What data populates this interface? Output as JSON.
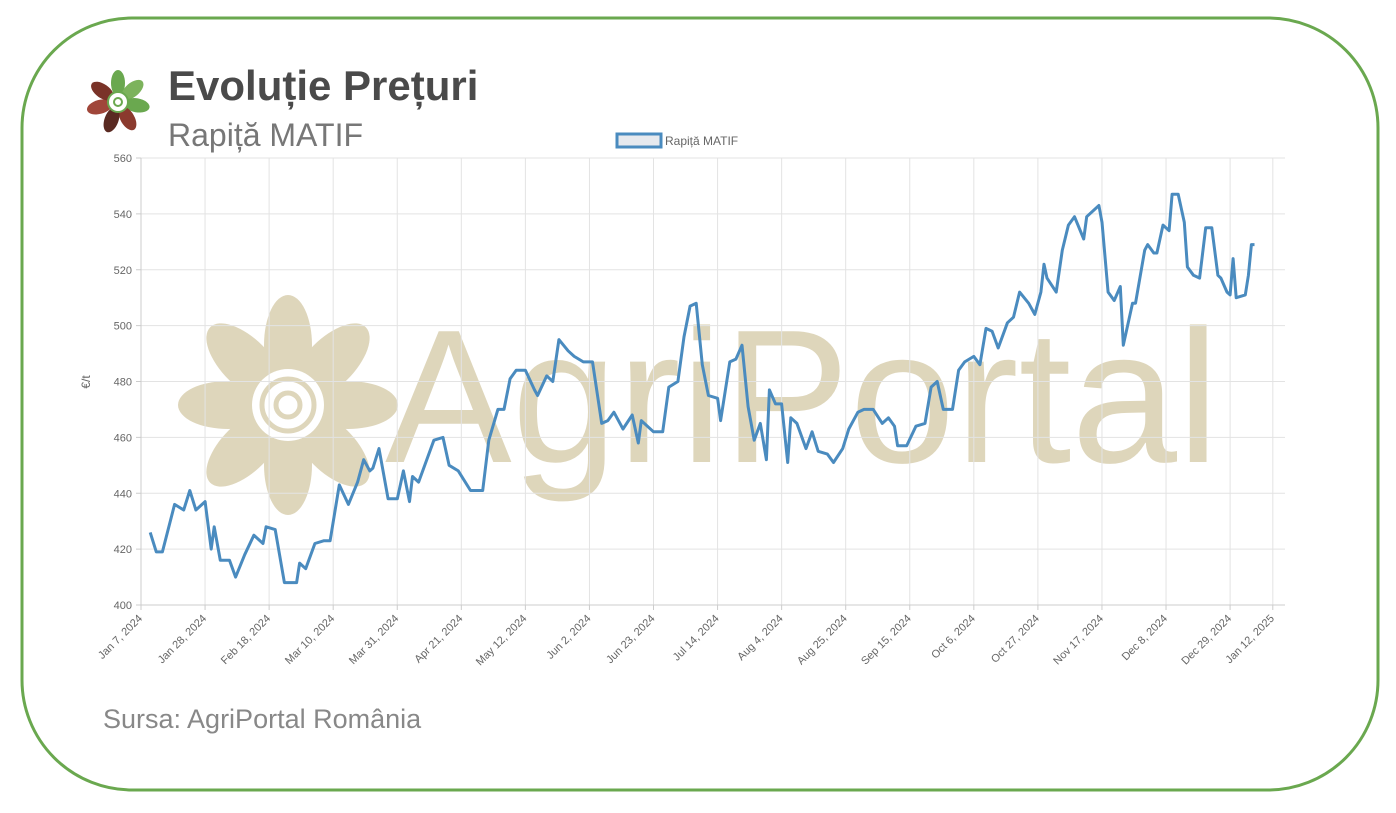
{
  "chart_data": {
    "type": "line",
    "title": "Evoluție Prețuri",
    "subtitle": "Rapiță MATIF",
    "y_label": "€/t",
    "source": "Sursa: AgriPortal România",
    "watermark": "AgriPortal",
    "grid": true,
    "legend": "top",
    "xlim": [
      "2024-01-07",
      "2025-01-16"
    ],
    "xticks": [
      {
        "value": "2024-01-07",
        "label": "Jan 7, 2024"
      },
      {
        "value": "2024-01-28",
        "label": "Jan 28, 2024"
      },
      {
        "value": "2024-02-18",
        "label": "Feb 18, 2024"
      },
      {
        "value": "2024-03-10",
        "label": "Mar 10, 2024"
      },
      {
        "value": "2024-03-31",
        "label": "Mar 31, 2024"
      },
      {
        "value": "2024-04-21",
        "label": "Apr 21, 2024"
      },
      {
        "value": "2024-05-12",
        "label": "May 12, 2024"
      },
      {
        "value": "2024-06-02",
        "label": "Jun 2, 2024"
      },
      {
        "value": "2024-06-23",
        "label": "Jun 23, 2024"
      },
      {
        "value": "2024-07-14",
        "label": "Jul 14, 2024"
      },
      {
        "value": "2024-08-04",
        "label": "Aug 4, 2024"
      },
      {
        "value": "2024-08-25",
        "label": "Aug 25, 2024"
      },
      {
        "value": "2024-09-15",
        "label": "Sep 15, 2024"
      },
      {
        "value": "2024-10-06",
        "label": "Oct 6, 2024"
      },
      {
        "value": "2024-10-27",
        "label": "Oct 27, 2024"
      },
      {
        "value": "2024-11-17",
        "label": "Nov 17, 2024"
      },
      {
        "value": "2024-12-08",
        "label": "Dec 8, 2024"
      },
      {
        "value": "2024-12-29",
        "label": "Dec 29, 2024"
      },
      {
        "value": "2025-01-12",
        "label": "Jan 12, 2025"
      }
    ],
    "ylim": [
      400,
      560
    ],
    "yticks": [
      400,
      420,
      440,
      460,
      480,
      500,
      520,
      540,
      560
    ],
    "x": [
      "2024-01-10",
      "2024-01-12",
      "2024-01-14",
      "2024-01-18",
      "2024-01-21",
      "2024-01-23",
      "2024-01-25",
      "2024-01-28",
      "2024-01-30",
      "2024-01-31",
      "2024-02-02",
      "2024-02-05",
      "2024-02-07",
      "2024-02-10",
      "2024-02-13",
      "2024-02-16",
      "2024-02-17",
      "2024-02-20",
      "2024-02-23",
      "2024-02-27",
      "2024-02-28",
      "2024-03-01",
      "2024-03-04",
      "2024-03-07",
      "2024-03-09",
      "2024-03-12",
      "2024-03-15",
      "2024-03-18",
      "2024-03-20",
      "2024-03-22",
      "2024-03-23",
      "2024-03-25",
      "2024-03-28",
      "2024-03-31",
      "2024-04-02",
      "2024-04-04",
      "2024-04-05",
      "2024-04-07",
      "2024-04-10",
      "2024-04-12",
      "2024-04-15",
      "2024-04-17",
      "2024-04-20",
      "2024-04-24",
      "2024-04-28",
      "2024-04-30",
      "2024-05-03",
      "2024-05-05",
      "2024-05-07",
      "2024-05-09",
      "2024-05-12",
      "2024-05-15",
      "2024-05-16",
      "2024-05-19",
      "2024-05-21",
      "2024-05-23",
      "2024-05-26",
      "2024-05-28",
      "2024-05-31",
      "2024-06-03",
      "2024-06-06",
      "2024-06-08",
      "2024-06-10",
      "2024-06-13",
      "2024-06-16",
      "2024-06-18",
      "2024-06-19",
      "2024-06-23",
      "2024-06-24",
      "2024-06-26",
      "2024-06-28",
      "2024-07-01",
      "2024-07-03",
      "2024-07-05",
      "2024-07-07",
      "2024-07-09",
      "2024-07-11",
      "2024-07-14",
      "2024-07-15",
      "2024-07-18",
      "2024-07-20",
      "2024-07-22",
      "2024-07-24",
      "2024-07-26",
      "2024-07-28",
      "2024-07-30",
      "2024-07-31",
      "2024-08-02",
      "2024-08-04",
      "2024-08-06",
      "2024-08-07",
      "2024-08-09",
      "2024-08-12",
      "2024-08-14",
      "2024-08-16",
      "2024-08-19",
      "2024-08-21",
      "2024-08-24",
      "2024-08-26",
      "2024-08-29",
      "2024-08-31",
      "2024-09-03",
      "2024-09-06",
      "2024-09-08",
      "2024-09-10",
      "2024-09-11",
      "2024-09-14",
      "2024-09-17",
      "2024-09-20",
      "2024-09-22",
      "2024-09-24",
      "2024-09-26",
      "2024-09-29",
      "2024-10-01",
      "2024-10-03",
      "2024-10-06",
      "2024-10-08",
      "2024-10-10",
      "2024-10-12",
      "2024-10-14",
      "2024-10-17",
      "2024-10-19",
      "2024-10-21",
      "2024-10-24",
      "2024-10-26",
      "2024-10-28",
      "2024-10-29",
      "2024-10-30",
      "2024-11-02",
      "2024-11-04",
      "2024-11-06",
      "2024-11-08",
      "2024-11-11",
      "2024-11-12",
      "2024-11-16",
      "2024-11-17",
      "2024-11-19",
      "2024-11-21",
      "2024-11-23",
      "2024-11-24",
      "2024-11-27",
      "2024-11-28",
      "2024-12-01",
      "2024-12-02",
      "2024-12-04",
      "2024-12-05",
      "2024-12-07",
      "2024-12-09",
      "2024-12-10",
      "2024-12-12",
      "2024-12-14",
      "2024-12-15",
      "2024-12-17",
      "2024-12-19",
      "2024-12-21",
      "2024-12-23",
      "2024-12-25",
      "2024-12-26",
      "2024-12-28",
      "2024-12-29",
      "2024-12-30",
      "2024-12-31",
      "2025-01-03",
      "2025-01-04",
      "2025-01-05",
      "2025-01-06"
    ],
    "series": [
      {
        "name": "Rapiță MATIF",
        "color": "#4a8bbf",
        "values": [
          426,
          419,
          419,
          436,
          434,
          441,
          434,
          437,
          420,
          428,
          416,
          416,
          410,
          418,
          425,
          422,
          428,
          427,
          408,
          408,
          415,
          413,
          422,
          423,
          423,
          443,
          436,
          444,
          452,
          448,
          449,
          456,
          438,
          438,
          448,
          437,
          446,
          444,
          453,
          459,
          460,
          450,
          448,
          441,
          441,
          459,
          470,
          470,
          481,
          484,
          484,
          477,
          475,
          482,
          480,
          495,
          491,
          489,
          487,
          487,
          465,
          466,
          469,
          463,
          468,
          458,
          466,
          462,
          462,
          462,
          478,
          480,
          496,
          507,
          508,
          486,
          475,
          474,
          466,
          487,
          488,
          493,
          471,
          459,
          465,
          452,
          477,
          472,
          472,
          451,
          467,
          465,
          456,
          462,
          455,
          454,
          451,
          456,
          463,
          469,
          470,
          470,
          465,
          467,
          464,
          457,
          457,
          464,
          465,
          478,
          480,
          470,
          470,
          484,
          487,
          489,
          486,
          499,
          498,
          492,
          501,
          503,
          512,
          508,
          504,
          512,
          522,
          517,
          512,
          527,
          536,
          539,
          531,
          539,
          543,
          537,
          512,
          509,
          514,
          493,
          508,
          508,
          527,
          529,
          526,
          526,
          536,
          534,
          547,
          547,
          537,
          521,
          518,
          517,
          535,
          535,
          518,
          517,
          512,
          511,
          524,
          510,
          511,
          518,
          529,
          529
        ]
      }
    ]
  }
}
